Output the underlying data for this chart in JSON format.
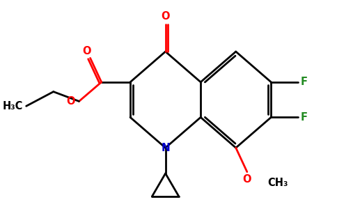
{
  "bg_color": "#ffffff",
  "bond_color": "#000000",
  "N_color": "#0000cd",
  "O_color": "#ff0000",
  "F_color": "#228b22",
  "line_width": 2.0,
  "figsize": [
    4.84,
    3.0
  ],
  "dpi": 100,
  "xlim": [
    0,
    10
  ],
  "ylim": [
    0,
    6.2
  ]
}
